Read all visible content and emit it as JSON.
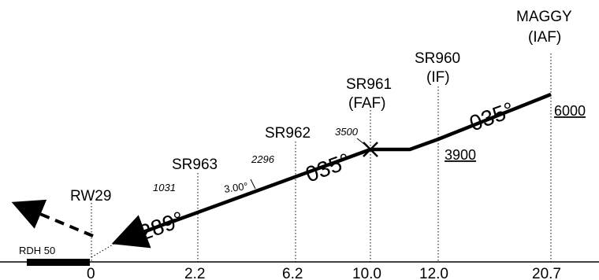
{
  "runway": "RW29",
  "rdh": "RDH 50",
  "glidepath": "3.00°",
  "courses": {
    "final": "289°",
    "middle": "035°",
    "initial": "035°"
  },
  "waypoints": [
    {
      "name": "SR963",
      "role": "",
      "distance": "2.2",
      "crossing_alt": "1031",
      "min_alt": ""
    },
    {
      "name": "SR962",
      "role": "",
      "distance": "6.2",
      "crossing_alt": "2296",
      "min_alt": ""
    },
    {
      "name": "SR961",
      "role": "(FAF)",
      "distance": "10.0",
      "crossing_alt": "3500",
      "min_alt": ""
    },
    {
      "name": "SR960",
      "role": "(IF)",
      "distance": "12.0",
      "crossing_alt": "",
      "min_alt": "3900"
    },
    {
      "name": "MAGGY",
      "role": "(IAF)",
      "distance": "20.7",
      "crossing_alt": "",
      "min_alt": "6000"
    }
  ],
  "runway_distance": "0"
}
